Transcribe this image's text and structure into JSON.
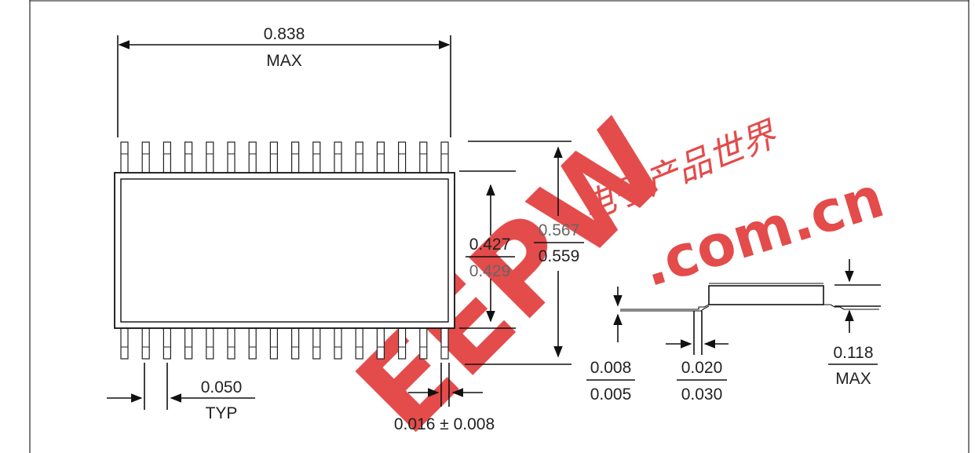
{
  "dimensions": {
    "body_length": {
      "value": "0.838",
      "qualifier": "MAX"
    },
    "body_width": {
      "top": "0.427",
      "bottom": "0.429"
    },
    "overall_width": {
      "top": "0.567",
      "bottom": "0.559"
    },
    "pitch": {
      "value": "0.050",
      "qualifier": "TYP"
    },
    "lead_width": {
      "text": "0.016 ± 0.008"
    },
    "lead_thickness": {
      "top": "0.008",
      "bottom": "0.005"
    },
    "standoff": {
      "top": "0.020",
      "bottom": "0.030"
    },
    "height": {
      "top": "0.118",
      "bottom": "MAX"
    }
  },
  "pins_per_side": 16,
  "watermark": {
    "logo": "EEPW",
    "domain": ".com.cn",
    "chinese": "电子产品世界",
    "color": "#e23b3b"
  }
}
